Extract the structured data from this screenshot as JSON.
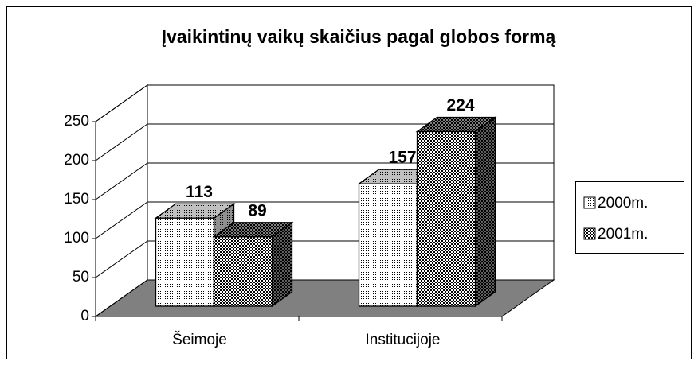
{
  "chart_data": {
    "type": "bar3d",
    "title": "Įvaikintinų vaikų skaičius pagal globos formą",
    "categories": [
      "Šeimoje",
      "Institucijoje"
    ],
    "series": [
      {
        "name": "2000m.",
        "color": "#000000",
        "values": [
          113,
          157
        ]
      },
      {
        "name": "2001m.",
        "color": "#000000",
        "values": [
          89,
          224
        ]
      }
    ],
    "ylim": [
      0,
      250
    ],
    "yticks": [
      0,
      50,
      100,
      150,
      200,
      250
    ],
    "grid": true,
    "legend": "right"
  }
}
